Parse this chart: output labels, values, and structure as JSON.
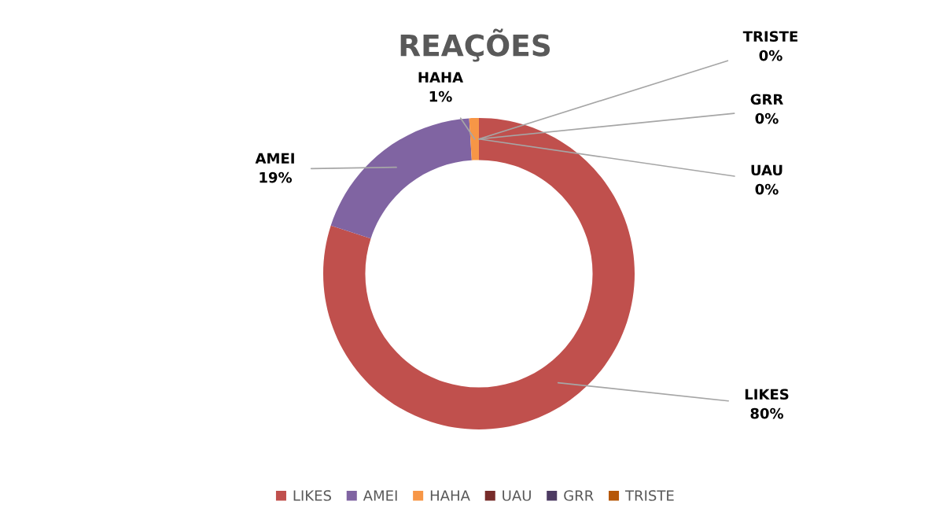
{
  "chart_data": {
    "type": "donut",
    "title": "REAÇÕES",
    "categories": [
      "LIKES",
      "AMEI",
      "HAHA",
      "UAU",
      "GRR",
      "TRISTE"
    ],
    "values": [
      80,
      19,
      1,
      0,
      0,
      0
    ],
    "value_labels": [
      "80%",
      "19%",
      "1%",
      "0%",
      "0%",
      "0%"
    ],
    "colors": [
      "#c0504d",
      "#8064a2",
      "#f79646",
      "#772c2a",
      "#4d3b62",
      "#b65708"
    ],
    "legend": "bottom"
  }
}
